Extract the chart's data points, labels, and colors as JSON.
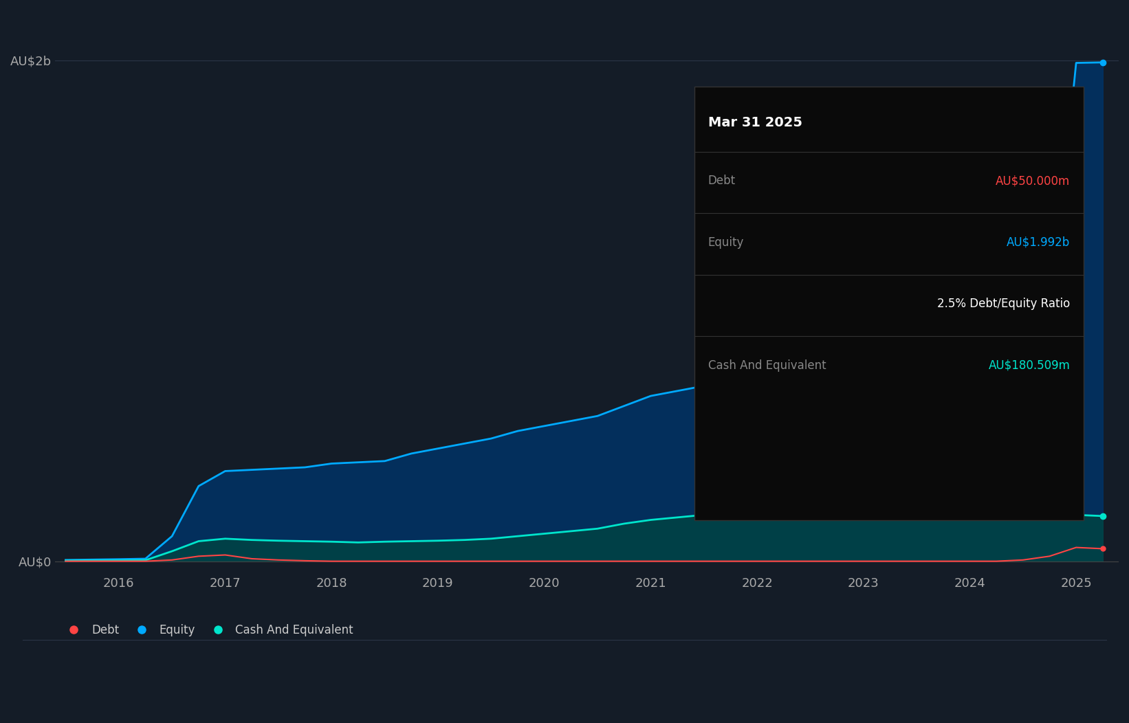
{
  "background_color": "#141c27",
  "plot_bg_color": "#141c27",
  "grid_color": "#2a3547",
  "years": [
    2015.5,
    2016.0,
    2016.25,
    2016.5,
    2016.75,
    2017.0,
    2017.25,
    2017.5,
    2017.75,
    2018.0,
    2018.25,
    2018.5,
    2018.75,
    2019.0,
    2019.25,
    2019.5,
    2019.75,
    2020.0,
    2020.25,
    2020.5,
    2020.75,
    2021.0,
    2021.25,
    2021.5,
    2021.75,
    2022.0,
    2022.25,
    2022.5,
    2022.75,
    2023.0,
    2023.25,
    2023.5,
    2023.75,
    2024.0,
    2024.25,
    2024.5,
    2024.75,
    2025.0,
    2025.25
  ],
  "debt": [
    0,
    0,
    0,
    5,
    20,
    25,
    10,
    5,
    2,
    0,
    0,
    0,
    0,
    0,
    0,
    0,
    0,
    0,
    0,
    0,
    0,
    0,
    0,
    0,
    0,
    0,
    0,
    0,
    0,
    0,
    0,
    0,
    0,
    0,
    0,
    5,
    20,
    55,
    50
  ],
  "equity": [
    5,
    8,
    10,
    100,
    300,
    360,
    365,
    370,
    375,
    390,
    395,
    400,
    430,
    450,
    470,
    490,
    520,
    540,
    560,
    580,
    620,
    660,
    680,
    700,
    720,
    730,
    740,
    750,
    760,
    770,
    800,
    810,
    820,
    840,
    870,
    900,
    950,
    1990,
    1992
  ],
  "cash": [
    2,
    3,
    4,
    40,
    80,
    90,
    85,
    82,
    80,
    78,
    75,
    78,
    80,
    82,
    85,
    90,
    100,
    110,
    120,
    130,
    150,
    165,
    175,
    185,
    195,
    200,
    205,
    210,
    215,
    220,
    230,
    235,
    240,
    245,
    250,
    240,
    200,
    185,
    180.5
  ],
  "debt_color": "#ff4444",
  "equity_color": "#00aaff",
  "cash_color": "#00e5cc",
  "equity_fill": "#003366",
  "cash_fill": "#004444",
  "ytick_labels": [
    "AU$0",
    "AU$2b"
  ],
  "ytick_values": [
    0,
    2000
  ],
  "ylim": [
    -50,
    2200
  ],
  "xlabel_ticks": [
    2016,
    2017,
    2018,
    2019,
    2020,
    2021,
    2022,
    2023,
    2024,
    2025
  ],
  "xlim": [
    2015.4,
    2025.4
  ],
  "legend_items": [
    "Debt",
    "Equity",
    "Cash And Equivalent"
  ],
  "legend_colors": [
    "#ff4444",
    "#00aaff",
    "#00e5cc"
  ],
  "tooltip_title": "Mar 31 2025",
  "tooltip_debt_label": "Debt",
  "tooltip_debt_value": "AU$50.000m",
  "tooltip_equity_label": "Equity",
  "tooltip_equity_value": "AU$1.992b",
  "tooltip_ratio": "2.5% Debt/Equity Ratio",
  "tooltip_cash_label": "Cash And Equivalent",
  "tooltip_cash_value": "AU$180.509m",
  "tooltip_bg": "#0a0a0a",
  "tooltip_border": "#333333"
}
